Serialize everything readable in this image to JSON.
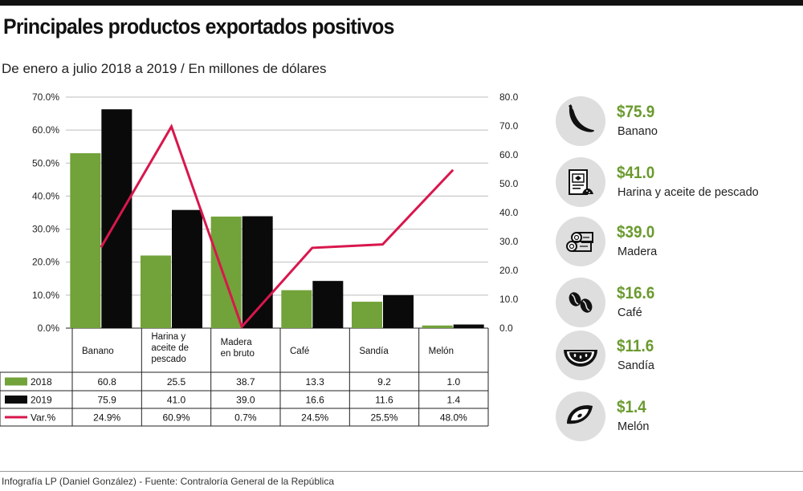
{
  "title": "Principales productos exportados positivos",
  "subtitle": "De enero a julio 2018 a 2019 / En millones de dólares",
  "footer": "Infografía LP (Daniel González) - Fuente: Contraloría General de la República",
  "colors": {
    "green": "#72a23a",
    "black": "#0a0a0a",
    "line": "#d8174d",
    "accent": "#6a9a2e"
  },
  "chart_data": {
    "type": "bar",
    "categories": [
      "Banano",
      "Harina y aceite de pescado",
      "Madera en bruto",
      "Café",
      "Sandía",
      "Melón"
    ],
    "category_lines": [
      [
        "Banano"
      ],
      [
        "Harina y",
        "aceite de",
        "pescado"
      ],
      [
        "Madera",
        "en bruto"
      ],
      [
        "Café"
      ],
      [
        "Sandía"
      ],
      [
        "Melón"
      ]
    ],
    "series": [
      {
        "name": "2018",
        "axis": "left",
        "values": [
          53.0,
          22.0,
          33.8,
          11.5,
          8.0,
          0.8
        ],
        "table": [
          "60.8",
          "25.5",
          "38.7",
          "13.3",
          "9.2",
          "1.0"
        ]
      },
      {
        "name": "2019",
        "axis": "left",
        "values": [
          66.3,
          35.8,
          33.9,
          14.3,
          10.0,
          1.1
        ],
        "table": [
          "75.9",
          "41.0",
          "39.0",
          "16.6",
          "11.6",
          "1.4"
        ]
      },
      {
        "name": "Var.%",
        "type": "line",
        "axis": "right",
        "values": [
          28.0,
          69.8,
          0.5,
          27.8,
          29.0,
          54.8
        ],
        "table": [
          "24.9%",
          "60.9%",
          "0.7%",
          "24.5%",
          "25.5%",
          "48.0%"
        ]
      }
    ],
    "y_left": {
      "ylim": [
        0,
        70
      ],
      "ticks": [
        "70.0%",
        "60.0%",
        "50.0%",
        "40.0%",
        "30.0%",
        "20.0%",
        "10.0%",
        "0.0%"
      ],
      "tick_values": [
        70,
        60,
        50,
        40,
        30,
        20,
        10,
        0
      ]
    },
    "y_right": {
      "ylim": [
        0,
        80
      ],
      "ticks": [
        "80.0",
        "70.0",
        "60.0",
        "50.0",
        "40.0",
        "30.0",
        "20.0",
        "10.0",
        "0.0"
      ],
      "tick_values": [
        80,
        70,
        60,
        50,
        40,
        30,
        20,
        10,
        0
      ]
    },
    "grid": true,
    "legend": "table-left"
  },
  "products": [
    {
      "value": "$75.9",
      "label": "Banano",
      "icon": "banana-icon"
    },
    {
      "value": "$41.0",
      "label": "Harina y aceite de pescado",
      "icon": "fishmeal-icon"
    },
    {
      "value": "$39.0",
      "label": "Madera",
      "icon": "wood-icon"
    },
    {
      "value": "$16.6",
      "label": "Café",
      "icon": "coffee-icon"
    },
    {
      "value": "$11.6",
      "label": "Sandía",
      "icon": "watermelon-icon"
    },
    {
      "value": "$1.4",
      "label": "Melón",
      "icon": "melon-icon"
    }
  ]
}
